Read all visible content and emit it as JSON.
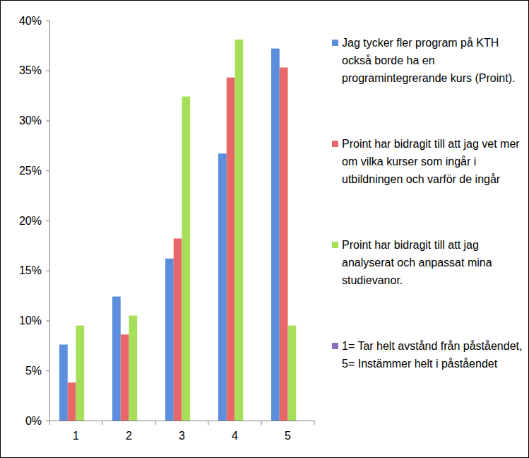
{
  "chart_data": {
    "type": "bar",
    "categories": [
      "1",
      "2",
      "3",
      "4",
      "5"
    ],
    "series": [
      {
        "name": "Jag tycker fler program på KTH också borde ha en programintegrerande kurs (Proint).",
        "color": "#5b8fde",
        "values": [
          7.6,
          12.4,
          16.2,
          26.7,
          37.2
        ]
      },
      {
        "name": "Proint har bidragit till att jag vet mer om vilka kurser som ingår i utbildningen och varför de ingår",
        "color": "#e8686a",
        "values": [
          3.8,
          8.6,
          18.2,
          34.3,
          35.3
        ]
      },
      {
        "name": "Proint har bidragit till att jag analyserat och anpassat mina studievanor.",
        "color": "#a8df5a",
        "values": [
          9.5,
          10.5,
          32.4,
          38.1,
          9.5
        ]
      },
      {
        "name": "1= Tar helt avstånd från påståendet, 5= Instämmer helt i påståendet",
        "color": "#8a6fc0",
        "values": [
          null,
          null,
          null,
          null,
          null
        ]
      }
    ],
    "ylim": [
      0,
      40
    ],
    "yticks": [
      {
        "value": 0,
        "label": "0%"
      },
      {
        "value": 5,
        "label": "5%"
      },
      {
        "value": 10,
        "label": "10%"
      },
      {
        "value": 15,
        "label": "15%"
      },
      {
        "value": 20,
        "label": "20%"
      },
      {
        "value": 25,
        "label": "25%"
      },
      {
        "value": 30,
        "label": "30%"
      },
      {
        "value": 35,
        "label": "35%"
      },
      {
        "value": 40,
        "label": "40%"
      }
    ],
    "grid": false,
    "legend": "right"
  }
}
